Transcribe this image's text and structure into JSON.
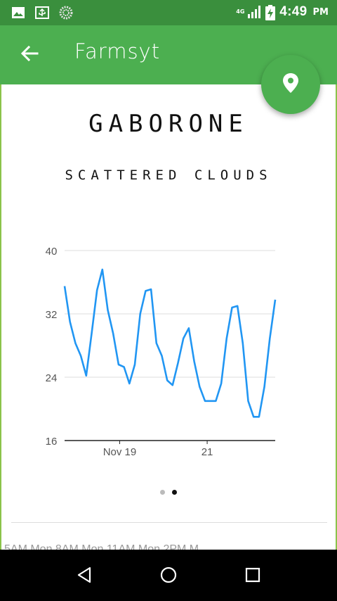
{
  "status_bar": {
    "time": "4:49",
    "ampm": "PM",
    "network_label": "4G",
    "icons": [
      "image-icon",
      "usb-icon",
      "sync-icon",
      "signal-icon",
      "battery-charging-icon"
    ]
  },
  "app_bar": {
    "title": "Farmsyt",
    "back_icon": "arrow-back-icon",
    "color": "#4caf50"
  },
  "fab": {
    "icon": "location-pin-icon"
  },
  "weather": {
    "city": "GABORONE",
    "condition": "SCATTERED CLOUDS"
  },
  "chart_data": {
    "type": "line",
    "title": "",
    "xlabel": "",
    "ylabel": "",
    "ylim": [
      16,
      40
    ],
    "yticks": [
      16,
      24,
      32,
      40
    ],
    "xtick_labels": [
      {
        "label": "Nov 19",
        "x": 5.1
      },
      {
        "label": "21",
        "x": 13.2
      }
    ],
    "grid": true,
    "color": "#2196f3",
    "series": [
      {
        "name": "",
        "x": [
          0,
          0.5,
          1,
          1.5,
          2,
          2.5,
          3,
          3.5,
          4,
          4.5,
          5,
          5.5,
          6,
          6.5,
          7,
          7.5,
          8,
          8.5,
          9,
          9.5,
          10,
          10.5,
          11,
          11.5,
          12,
          12.5,
          13,
          13.5,
          14,
          14.5,
          15,
          15.5,
          16,
          16.5,
          17,
          17.5,
          18,
          18.5,
          19,
          19.5
        ],
        "values": [
          35.5,
          31,
          28.3,
          26.7,
          24.2,
          29.5,
          35,
          37.6,
          32.5,
          29.5,
          25.6,
          25.3,
          23.2,
          25.6,
          32,
          34.9,
          35.1,
          28.3,
          26.7,
          23.6,
          23,
          25.8,
          28.9,
          30.2,
          26,
          22.8,
          21,
          21,
          21,
          23.2,
          28.9,
          32.8,
          33,
          28.3,
          21,
          19,
          19,
          22.8,
          28.9,
          33.8
        ]
      }
    ]
  },
  "pager": {
    "count": 2,
    "active_index": 1
  },
  "peek_row": {
    "text": "5AM    Mon 8AM    Mon 11AM    Mon 2PM    M"
  },
  "nav_bar": {
    "icons": [
      "back-triangle-icon",
      "home-circle-icon",
      "recents-square-icon"
    ]
  }
}
